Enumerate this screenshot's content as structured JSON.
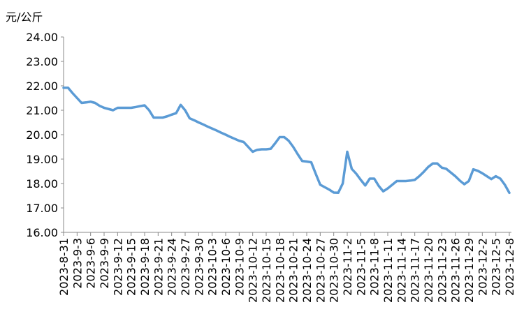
{
  "chart_data": {
    "type": "line",
    "y_label": "元/公斤",
    "categories": [
      "2023-8-31",
      null,
      null,
      "2023-9-3",
      null,
      null,
      "2023-9-6",
      null,
      null,
      "2023-9-9",
      null,
      null,
      "2023-9-12",
      null,
      null,
      "2023-9-15",
      null,
      null,
      "2023-9-18",
      null,
      null,
      "2023-9-21",
      null,
      null,
      "2023-9-24",
      null,
      null,
      "2023-9-27",
      null,
      null,
      "2023-9-30",
      null,
      null,
      "2023-10-3",
      null,
      null,
      "2023-10-6",
      null,
      null,
      "2023-10-9",
      null,
      null,
      "2023-10-12",
      null,
      null,
      "2023-10-15",
      null,
      null,
      "2023-10-18",
      null,
      null,
      "2023-10-21",
      null,
      null,
      "2023-10-24",
      null,
      null,
      "2023-10-27",
      null,
      null,
      "2023-10-30",
      null,
      null,
      "2023-11-2",
      null,
      null,
      "2023-11-5",
      null,
      null,
      "2023-11-8",
      null,
      null,
      "2023-11-11",
      null,
      null,
      "2023-11-14",
      null,
      null,
      "2023-11-17",
      null,
      null,
      "2023-11-20",
      null,
      null,
      "2023-11-23",
      null,
      null,
      "2023-11-26",
      null,
      null,
      "2023-11-29",
      null,
      null,
      "2023-12-2",
      null,
      null,
      "2023-12-5",
      null,
      null,
      "2023-12-8"
    ],
    "values": [
      21.92,
      21.92,
      21.7,
      21.5,
      21.3,
      21.32,
      21.35,
      21.3,
      21.18,
      21.1,
      21.05,
      21.0,
      21.1,
      21.1,
      21.1,
      21.1,
      21.13,
      21.17,
      21.2,
      21.0,
      20.7,
      20.7,
      20.7,
      20.75,
      20.82,
      20.88,
      21.22,
      21.0,
      20.67,
      20.59,
      20.5,
      20.42,
      20.33,
      20.25,
      20.17,
      20.08,
      20.0,
      19.91,
      19.83,
      19.75,
      19.7,
      19.5,
      19.3,
      19.38,
      19.4,
      19.4,
      19.42,
      19.65,
      19.9,
      19.9,
      19.75,
      19.5,
      19.2,
      18.92,
      18.9,
      18.87,
      18.4,
      17.95,
      17.85,
      17.75,
      17.63,
      17.62,
      18.0,
      19.3,
      18.6,
      18.4,
      18.15,
      17.92,
      18.2,
      18.2,
      17.9,
      17.68,
      17.8,
      17.95,
      18.1,
      18.1,
      18.1,
      18.12,
      18.15,
      18.3,
      18.48,
      18.68,
      18.82,
      18.82,
      18.65,
      18.6,
      18.45,
      18.3,
      18.12,
      17.97,
      18.1,
      18.58,
      18.52,
      18.42,
      18.3,
      18.18,
      18.3,
      18.2,
      17.95,
      17.62
    ],
    "color": "#5b9bd5",
    "ylim": [
      16,
      24
    ],
    "yticks": [
      {
        "value": 16,
        "label": "16.00"
      },
      {
        "value": 17,
        "label": "17.00"
      },
      {
        "value": 18,
        "label": "18.00"
      },
      {
        "value": 19,
        "label": "19.00"
      },
      {
        "value": 20,
        "label": "20.00"
      },
      {
        "value": 21,
        "label": "21.00"
      },
      {
        "value": 22,
        "label": "22.00"
      },
      {
        "value": 23,
        "label": "23.00"
      },
      {
        "value": 24,
        "label": "24.00"
      }
    ]
  }
}
